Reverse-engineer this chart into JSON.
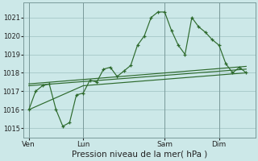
{
  "bg_color": "#cce8e8",
  "grid_color": "#aacccc",
  "line_color": "#2d6a2d",
  "xlabel": "Pression niveau de la mer( hPa )",
  "xlabel_fontsize": 7.5,
  "ylim": [
    1014.5,
    1021.8
  ],
  "yticks": [
    1015,
    1016,
    1017,
    1018,
    1019,
    1020,
    1021
  ],
  "xtick_labels": [
    "Ven",
    "Lun",
    "Sam",
    "Dim"
  ],
  "xtick_positions": [
    0,
    48,
    120,
    168
  ],
  "vline_positions": [
    0,
    48,
    120,
    168
  ],
  "xlim": [
    -5,
    200
  ],
  "line1_x": [
    0,
    6,
    12,
    18,
    24,
    30,
    36,
    42,
    48,
    54,
    60,
    66,
    72,
    78,
    84,
    90,
    96,
    102,
    108,
    114,
    120,
    126,
    132,
    138,
    144,
    150,
    156,
    162,
    168,
    174,
    180,
    186,
    192
  ],
  "line1_y": [
    1016.0,
    1017.0,
    1017.3,
    1017.4,
    1016.0,
    1015.1,
    1015.3,
    1016.8,
    1016.9,
    1017.6,
    1017.5,
    1018.2,
    1018.3,
    1017.8,
    1018.1,
    1018.4,
    1019.5,
    1020.0,
    1021.0,
    1021.3,
    1021.3,
    1020.3,
    1019.5,
    1019.0,
    1021.0,
    1020.5,
    1020.2,
    1019.8,
    1019.5,
    1018.5,
    1018.0,
    1018.3,
    1018.0
  ],
  "line2_x": [
    0,
    48,
    192
  ],
  "line2_y": [
    1016.0,
    1017.3,
    1018.0
  ],
  "line3_x": [
    0,
    192
  ],
  "line3_y": [
    1017.3,
    1018.2
  ],
  "line4_x": [
    0,
    192
  ],
  "line4_y": [
    1017.4,
    1018.35
  ]
}
